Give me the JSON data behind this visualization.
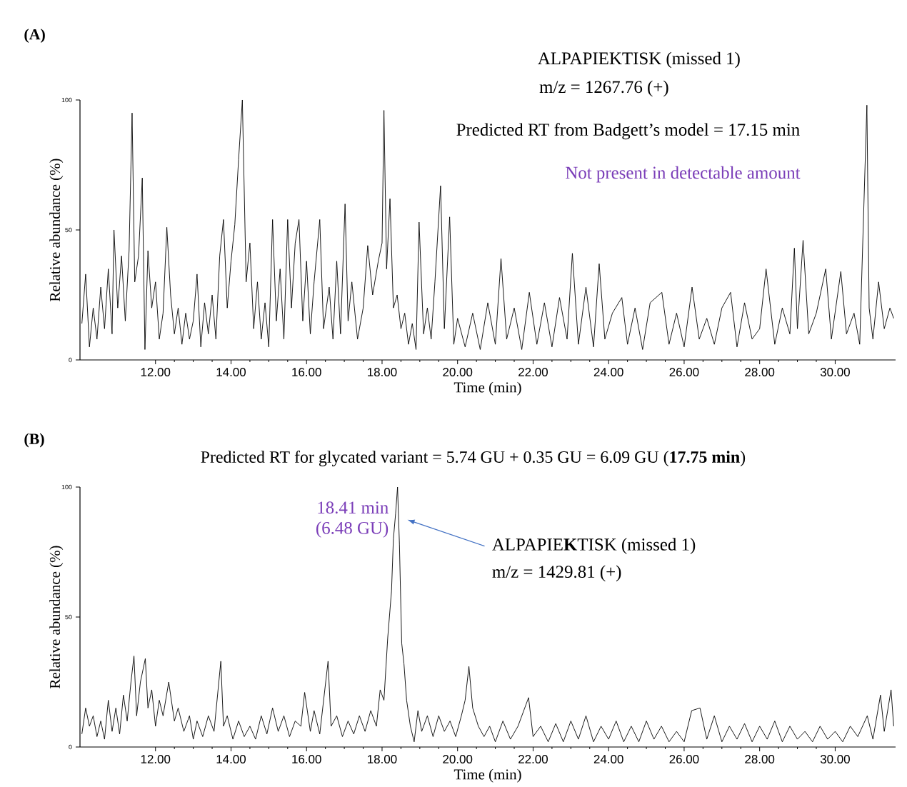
{
  "chart_data": [
    {
      "type": "line",
      "title": "(A)",
      "xlabel": "Time (min)",
      "ylabel": "Relative abundance (%)",
      "marker": "none",
      "xlim": [
        10,
        31.6
      ],
      "ylim": [
        0,
        100
      ],
      "xticks": [
        {
          "value": 12,
          "label": "12.00"
        },
        {
          "value": 14,
          "label": "14.00"
        },
        {
          "value": 16,
          "label": "16.00"
        },
        {
          "value": 18,
          "label": "18.00"
        },
        {
          "value": 20,
          "label": "20.00"
        },
        {
          "value": 22,
          "label": "22.00"
        },
        {
          "value": 24,
          "label": "24.00"
        },
        {
          "value": 26,
          "label": "26.00"
        },
        {
          "value": 28,
          "label": "28.00"
        },
        {
          "value": 30,
          "label": "30.00"
        }
      ],
      "yticks": [
        0,
        50,
        100
      ],
      "annotations": [
        "ALPAPIEKTISK (missed 1)",
        "m/z = 1267.76 (+)",
        "Predicted RT from Badgett’s model = 17.15 min",
        "Not present in detectable amount"
      ],
      "series": [
        {
          "color": "#000000",
          "x": [
            10.05,
            10.15,
            10.25,
            10.35,
            10.45,
            10.55,
            10.65,
            10.75,
            10.85,
            10.9,
            11.0,
            11.1,
            11.2,
            11.3,
            11.38,
            11.45,
            11.55,
            11.65,
            11.72,
            11.8,
            11.9,
            12.0,
            12.1,
            12.2,
            12.3,
            12.4,
            12.5,
            12.6,
            12.7,
            12.8,
            12.9,
            13.0,
            13.1,
            13.2,
            13.3,
            13.4,
            13.5,
            13.6,
            13.7,
            13.8,
            13.9,
            14.0,
            14.1,
            14.2,
            14.3,
            14.4,
            14.5,
            14.6,
            14.7,
            14.8,
            14.9,
            15.0,
            15.1,
            15.2,
            15.3,
            15.4,
            15.5,
            15.6,
            15.7,
            15.8,
            15.9,
            16.0,
            16.1,
            16.2,
            16.35,
            16.45,
            16.6,
            16.7,
            16.8,
            16.9,
            17.02,
            17.1,
            17.2,
            17.35,
            17.5,
            17.62,
            17.75,
            17.9,
            18.0,
            18.05,
            18.12,
            18.21,
            18.3,
            18.4,
            18.5,
            18.6,
            18.7,
            18.8,
            18.9,
            18.98,
            19.1,
            19.2,
            19.3,
            19.4,
            19.55,
            19.65,
            19.79,
            19.9,
            20.0,
            20.2,
            20.4,
            20.6,
            20.8,
            21.0,
            21.15,
            21.3,
            21.5,
            21.7,
            21.9,
            22.1,
            22.3,
            22.5,
            22.7,
            22.9,
            23.04,
            23.2,
            23.4,
            23.6,
            23.75,
            23.9,
            24.1,
            24.35,
            24.5,
            24.7,
            24.9,
            25.1,
            25.41,
            25.6,
            25.8,
            26.0,
            26.21,
            26.4,
            26.6,
            26.8,
            27.0,
            27.23,
            27.4,
            27.6,
            27.8,
            28.0,
            28.17,
            28.4,
            28.6,
            28.8,
            28.92,
            29.0,
            29.15,
            29.3,
            29.5,
            29.75,
            29.9,
            30.15,
            30.3,
            30.5,
            30.65,
            30.84,
            30.9,
            31.0,
            31.15,
            31.3,
            31.45,
            31.55
          ],
          "values": [
            14,
            33,
            5,
            20,
            8,
            28,
            12,
            35,
            10,
            50,
            20,
            40,
            15,
            42,
            95,
            30,
            40,
            70,
            4,
            42,
            20,
            30,
            8,
            18,
            51,
            25,
            10,
            20,
            6,
            18,
            8,
            15,
            33,
            5,
            22,
            10,
            25,
            8,
            40,
            54,
            20,
            38,
            52,
            77,
            100,
            30,
            45,
            12,
            30,
            8,
            22,
            5,
            54,
            15,
            35,
            8,
            54,
            20,
            45,
            54,
            15,
            38,
            10,
            30,
            54,
            12,
            28,
            8,
            38,
            10,
            60,
            15,
            30,
            8,
            20,
            44,
            25,
            38,
            45,
            96,
            35,
            62,
            20,
            25,
            12,
            18,
            6,
            14,
            4,
            53,
            10,
            20,
            8,
            30,
            67,
            12,
            55,
            6,
            16,
            5,
            18,
            4,
            22,
            6,
            39,
            8,
            20,
            4,
            26,
            6,
            22,
            5,
            24,
            8,
            41,
            6,
            28,
            5,
            37,
            8,
            18,
            24,
            6,
            20,
            4,
            22,
            26,
            6,
            18,
            5,
            28,
            8,
            16,
            6,
            20,
            26,
            5,
            22,
            8,
            12,
            35,
            6,
            20,
            10,
            43,
            12,
            46,
            10,
            18,
            35,
            8,
            34,
            10,
            18,
            6,
            98,
            20,
            8,
            30,
            12,
            20,
            16
          ]
        }
      ]
    },
    {
      "type": "line",
      "title": "(B)",
      "subtitle": "Predicted RT for glycated variant = 5.74 GU + 0.35 GU = 6.09 GU (**17.75 min**)",
      "xlabel": "Time (min)",
      "ylabel": "Relative abundance (%)",
      "marker": "none",
      "xlim": [
        10,
        31.6
      ],
      "ylim": [
        0,
        100
      ],
      "xticks": [
        {
          "value": 12,
          "label": "12.00"
        },
        {
          "value": 14,
          "label": "14.00"
        },
        {
          "value": 16,
          "label": "16.00"
        },
        {
          "value": 18,
          "label": "18.00"
        },
        {
          "value": 20,
          "label": "20.00"
        },
        {
          "value": 22,
          "label": "22.00"
        },
        {
          "value": 24,
          "label": "24.00"
        },
        {
          "value": 26,
          "label": "26.00"
        },
        {
          "value": 28,
          "label": "28.00"
        },
        {
          "value": 30,
          "label": "30.00"
        }
      ],
      "yticks": [
        0,
        50,
        100
      ],
      "annotations": [
        {
          "text": "18.41 min",
          "x": 18.41,
          "y": 100
        },
        {
          "text": "(6.48 GU)",
          "x": 18.41,
          "y": 100
        },
        "ALPAPIE**K**TISK (missed 1)",
        "m/z = 1429.81 (+)"
      ],
      "series": [
        {
          "color": "#000000",
          "x": [
            10.05,
            10.15,
            10.25,
            10.35,
            10.45,
            10.55,
            10.65,
            10.75,
            10.85,
            10.95,
            11.05,
            11.15,
            11.25,
            11.35,
            11.43,
            11.5,
            11.6,
            11.73,
            11.8,
            11.9,
            12.0,
            12.1,
            12.2,
            12.35,
            12.5,
            12.6,
            12.75,
            12.9,
            13.0,
            13.1,
            13.25,
            13.4,
            13.55,
            13.73,
            13.8,
            13.9,
            14.05,
            14.2,
            14.35,
            14.5,
            14.65,
            14.8,
            14.95,
            15.1,
            15.25,
            15.4,
            15.55,
            15.7,
            15.85,
            15.95,
            16.1,
            16.2,
            16.35,
            16.57,
            16.65,
            16.8,
            16.95,
            17.1,
            17.25,
            17.4,
            17.55,
            17.7,
            17.85,
            17.95,
            18.05,
            18.15,
            18.25,
            18.3,
            18.36,
            18.41,
            18.46,
            18.52,
            18.58,
            18.65,
            18.75,
            18.85,
            18.95,
            19.05,
            19.2,
            19.35,
            19.5,
            19.65,
            19.8,
            19.95,
            20.1,
            20.2,
            20.3,
            20.4,
            20.55,
            20.7,
            20.85,
            21.0,
            21.2,
            21.4,
            21.6,
            21.88,
            22.0,
            22.2,
            22.4,
            22.6,
            22.8,
            23.0,
            23.2,
            23.4,
            23.6,
            23.8,
            24.0,
            24.2,
            24.4,
            24.6,
            24.8,
            25.0,
            25.2,
            25.4,
            25.6,
            25.8,
            26.0,
            26.2,
            26.42,
            26.6,
            26.8,
            27.0,
            27.2,
            27.4,
            27.6,
            27.8,
            28.0,
            28.2,
            28.4,
            28.6,
            28.8,
            29.0,
            29.2,
            29.4,
            29.6,
            29.8,
            30.0,
            30.2,
            30.4,
            30.6,
            30.85,
            31.0,
            31.2,
            31.3,
            31.48,
            31.55
          ],
          "values": [
            5,
            15,
            8,
            12,
            4,
            10,
            3,
            18,
            6,
            15,
            5,
            20,
            10,
            25,
            35,
            12,
            25,
            34,
            15,
            22,
            8,
            18,
            12,
            25,
            10,
            15,
            6,
            12,
            3,
            10,
            4,
            12,
            6,
            33,
            8,
            12,
            3,
            10,
            4,
            8,
            3,
            12,
            5,
            15,
            6,
            12,
            4,
            10,
            8,
            21,
            6,
            14,
            5,
            33,
            8,
            12,
            4,
            10,
            5,
            12,
            6,
            14,
            8,
            22,
            18,
            42,
            60,
            80,
            90,
            100,
            78,
            40,
            32,
            18,
            8,
            2,
            14,
            6,
            12,
            4,
            12,
            6,
            10,
            4,
            12,
            18,
            31,
            15,
            8,
            4,
            8,
            2,
            10,
            3,
            8,
            19,
            4,
            8,
            2,
            9,
            2,
            10,
            3,
            12,
            2,
            8,
            3,
            10,
            2,
            8,
            2,
            10,
            3,
            8,
            2,
            6,
            2,
            14,
            15,
            3,
            12,
            2,
            8,
            3,
            9,
            2,
            8,
            3,
            10,
            2,
            8,
            3,
            6,
            2,
            8,
            3,
            6,
            2,
            8,
            4,
            12,
            3,
            20,
            6,
            22,
            8
          ]
        }
      ]
    }
  ]
}
